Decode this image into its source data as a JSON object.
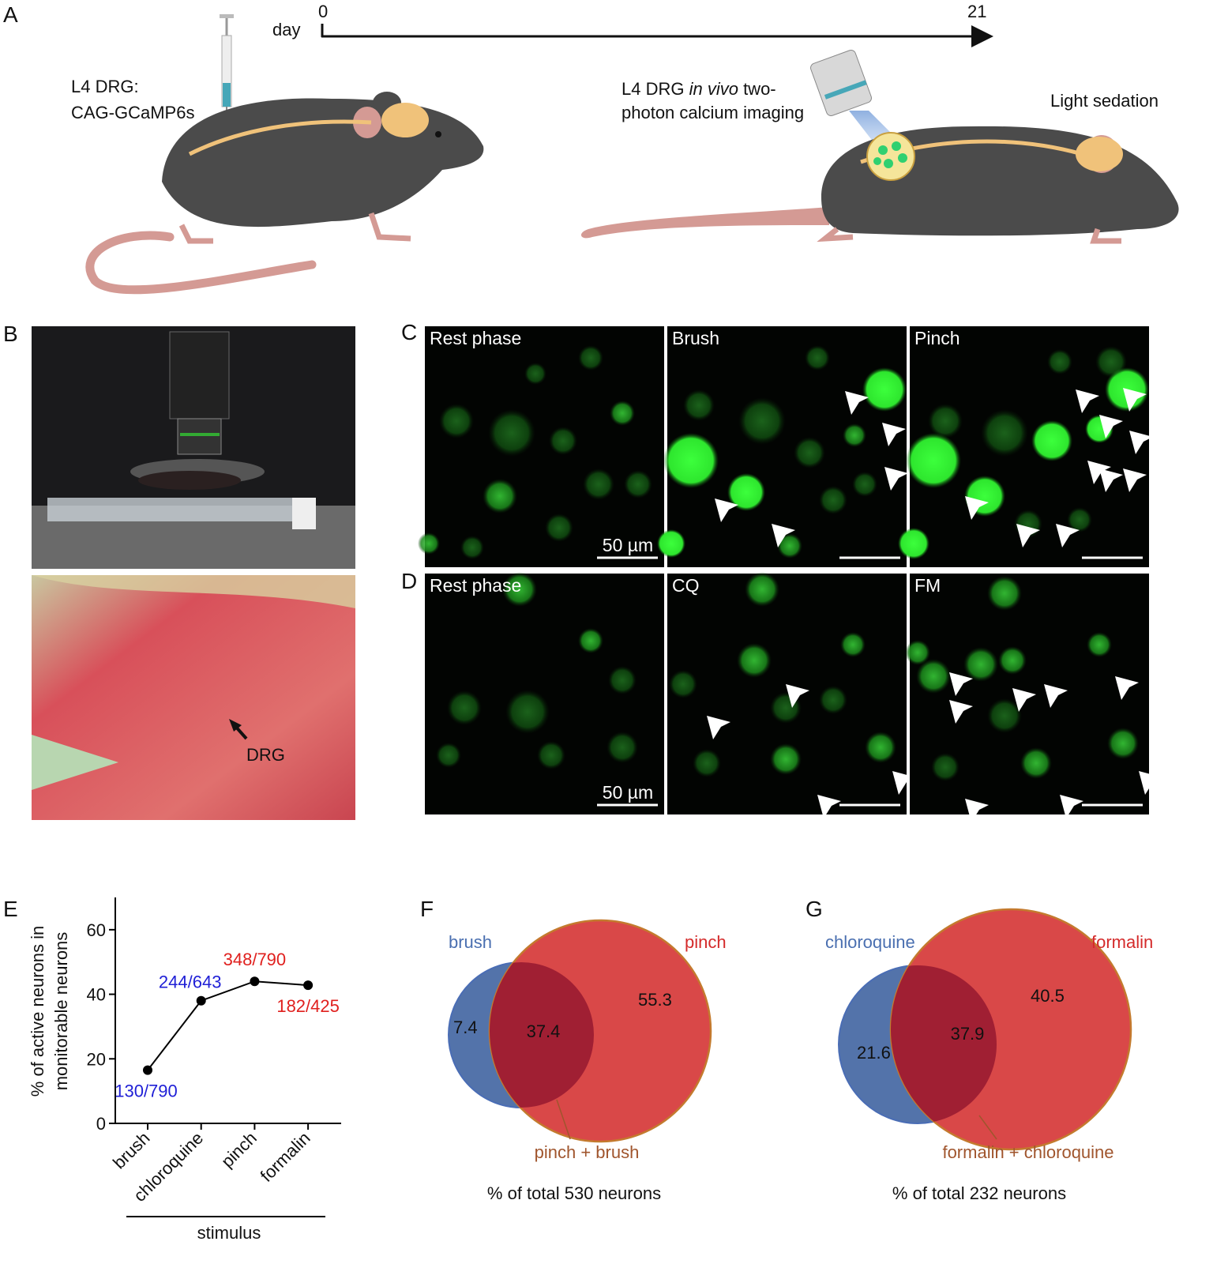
{
  "panel_labels": {
    "a": "A",
    "b": "B",
    "c": "C",
    "d": "D",
    "e": "E",
    "f": "F",
    "g": "G"
  },
  "timeline": {
    "label": "day",
    "start": 0,
    "end": 21
  },
  "panel_a": {
    "injection": [
      "L4 DRG:",
      "CAG-GCaMP6s"
    ],
    "imaging_line1": [
      "L4 DRG ",
      "in vivo",
      " two-"
    ],
    "imaging_line2": "photon  calcium imaging",
    "sedation": "Light sedation"
  },
  "panel_b": {
    "arrow_label": "DRG"
  },
  "panel_c": {
    "titles": [
      "Rest phase",
      "Brush",
      "Pinch"
    ],
    "scale_bar": "50 µm"
  },
  "panel_d": {
    "titles": [
      "Rest phase",
      "CQ",
      "FM"
    ],
    "scale_bar": "50 µm"
  },
  "chart_data": {
    "type": "line",
    "ylabel": [
      "% of active neurons in",
      "monitorable neurons"
    ],
    "xlabel": "stimulus",
    "categories": [
      "brush",
      "chloroquine",
      "pinch",
      "formalin"
    ],
    "values": [
      16.5,
      38,
      44,
      42.8
    ],
    "value_labels": [
      "130/790",
      "244/643",
      "348/790",
      "182/425"
    ],
    "value_label_colors": [
      "#1f1fd6",
      "#1f1fd6",
      "#e0201e",
      "#e0201e"
    ],
    "color": "#000000",
    "ylim": [
      0,
      70
    ],
    "yticks": [
      0,
      20,
      40,
      60
    ]
  },
  "venn_f": {
    "left": "brush",
    "right": "pinch",
    "left_only": 7.4,
    "overlap": 37.4,
    "right_only": 55.3,
    "overlap_label": "pinch + brush",
    "caption": "% of total  530 neurons"
  },
  "venn_g": {
    "left": "chloroquine",
    "right": "formalin",
    "left_only": 21.6,
    "overlap": 37.9,
    "right_only": 40.5,
    "overlap_label": "formalin  + chloroquine",
    "caption": "% of total  232 neurons"
  }
}
